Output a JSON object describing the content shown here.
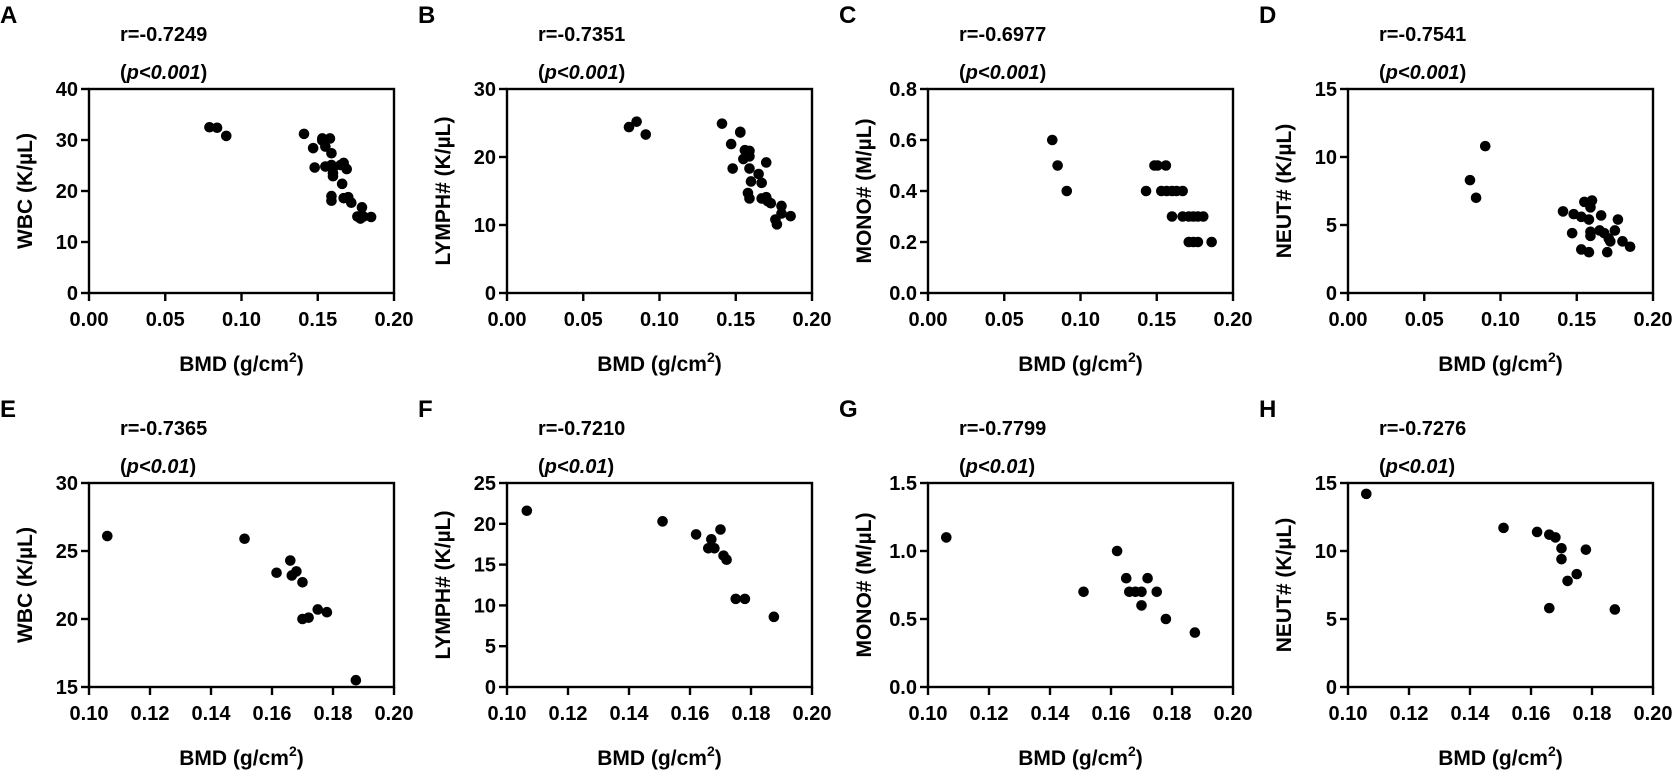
{
  "chart_data": [
    {
      "panel": "A",
      "type": "scatter",
      "r_label": "r=-0.7249",
      "p_prefix": "(",
      "p_italic": "p",
      "p_value": "<0.001",
      "p_suffix": ")",
      "xlabel": "BMD (g/cm",
      "xlabel_sup": "2",
      "xlabel_end": ")",
      "ylabel": "WBC (K/µL)",
      "xlim": [
        0,
        0.2
      ],
      "xticks": [
        "0.00",
        "0.05",
        "0.10",
        "0.15",
        "0.20"
      ],
      "ylim": [
        0,
        40
      ],
      "yticks": [
        "0",
        "10",
        "20",
        "30",
        "40"
      ],
      "points": [
        [
          0.079,
          32.5
        ],
        [
          0.084,
          32.4
        ],
        [
          0.09,
          30.8
        ],
        [
          0.141,
          31.2
        ],
        [
          0.147,
          28.4
        ],
        [
          0.148,
          24.6
        ],
        [
          0.153,
          30.3
        ],
        [
          0.153,
          29.9
        ],
        [
          0.155,
          28.7
        ],
        [
          0.158,
          30.3
        ],
        [
          0.159,
          27.4
        ],
        [
          0.155,
          24.8
        ],
        [
          0.159,
          25.1
        ],
        [
          0.16,
          23.5
        ],
        [
          0.16,
          22.9
        ],
        [
          0.16,
          24.5
        ],
        [
          0.165,
          25.1
        ],
        [
          0.167,
          25.5
        ],
        [
          0.169,
          24.3
        ],
        [
          0.166,
          21.4
        ],
        [
          0.159,
          19.0
        ],
        [
          0.159,
          18.1
        ],
        [
          0.167,
          18.6
        ],
        [
          0.17,
          18.8
        ],
        [
          0.172,
          17.7
        ],
        [
          0.179,
          16.8
        ],
        [
          0.176,
          15.0
        ],
        [
          0.178,
          14.6
        ],
        [
          0.18,
          15.0
        ],
        [
          0.185,
          14.9
        ]
      ]
    },
    {
      "panel": "B",
      "type": "scatter",
      "r_label": "r=-0.7351",
      "p_prefix": "(",
      "p_italic": "p",
      "p_value": "<0.001",
      "p_suffix": ")",
      "xlabel": "BMD (g/cm",
      "xlabel_sup": "2",
      "xlabel_end": ")",
      "ylabel": "LYMPH# (K/µL)",
      "xlim": [
        0,
        0.2
      ],
      "xticks": [
        "0.00",
        "0.05",
        "0.10",
        "0.15",
        "0.20"
      ],
      "ylim": [
        0,
        30
      ],
      "yticks": [
        "0",
        "10",
        "20",
        "30"
      ],
      "points": [
        [
          0.08,
          24.4
        ],
        [
          0.085,
          25.2
        ],
        [
          0.091,
          23.3
        ],
        [
          0.141,
          24.9
        ],
        [
          0.153,
          23.7
        ],
        [
          0.153,
          23.6
        ],
        [
          0.147,
          21.9
        ],
        [
          0.148,
          18.3
        ],
        [
          0.156,
          21.0
        ],
        [
          0.159,
          20.9
        ],
        [
          0.155,
          19.7
        ],
        [
          0.159,
          20.1
        ],
        [
          0.159,
          18.3
        ],
        [
          0.17,
          19.2
        ],
        [
          0.165,
          17.5
        ],
        [
          0.16,
          16.4
        ],
        [
          0.167,
          16.2
        ],
        [
          0.158,
          14.7
        ],
        [
          0.159,
          13.9
        ],
        [
          0.167,
          13.9
        ],
        [
          0.17,
          14.1
        ],
        [
          0.171,
          13.5
        ],
        [
          0.173,
          13.2
        ],
        [
          0.18,
          12.8
        ],
        [
          0.18,
          11.7
        ],
        [
          0.186,
          11.3
        ],
        [
          0.176,
          10.8
        ],
        [
          0.177,
          10.1
        ]
      ]
    },
    {
      "panel": "C",
      "type": "scatter",
      "r_label": "r=-0.6977",
      "p_prefix": "(",
      "p_italic": "p",
      "p_value": "<0.001",
      "p_suffix": ")",
      "xlabel": "BMD (g/cm",
      "xlabel_sup": "2",
      "xlabel_end": ")",
      "ylabel": "MONO# (M/µL)",
      "xlim": [
        0,
        0.2
      ],
      "xticks": [
        "0.00",
        "0.05",
        "0.10",
        "0.15",
        "0.20"
      ],
      "ylim": [
        0,
        0.8
      ],
      "yticks": [
        "0.0",
        "0.2",
        "0.4",
        "0.6",
        "0.8"
      ],
      "points": [
        [
          0.0815,
          0.6
        ],
        [
          0.085,
          0.5
        ],
        [
          0.091,
          0.4
        ],
        [
          0.143,
          0.4
        ],
        [
          0.1485,
          0.5
        ],
        [
          0.1505,
          0.5
        ],
        [
          0.156,
          0.5
        ],
        [
          0.153,
          0.4
        ],
        [
          0.1565,
          0.4
        ],
        [
          0.16,
          0.4
        ],
        [
          0.163,
          0.4
        ],
        [
          0.167,
          0.4
        ],
        [
          0.16,
          0.3
        ],
        [
          0.167,
          0.3
        ],
        [
          0.171,
          0.3
        ],
        [
          0.174,
          0.3
        ],
        [
          0.177,
          0.3
        ],
        [
          0.1805,
          0.3
        ],
        [
          0.171,
          0.2
        ],
        [
          0.174,
          0.2
        ],
        [
          0.177,
          0.2
        ],
        [
          0.186,
          0.2
        ]
      ]
    },
    {
      "panel": "D",
      "type": "scatter",
      "r_label": "r=-0.7541",
      "p_prefix": "(",
      "p_italic": "p",
      "p_value": "<0.001",
      "p_suffix": ")",
      "xlabel": "BMD (g/cm",
      "xlabel_sup": "2",
      "xlabel_end": ")",
      "ylabel": "NEUT# (K/µL)",
      "xlim": [
        0,
        0.2
      ],
      "xticks": [
        "0.00",
        "0.05",
        "0.10",
        "0.15",
        "0.20"
      ],
      "ylim": [
        0,
        15
      ],
      "yticks": [
        "0",
        "5",
        "10",
        "15"
      ],
      "points": [
        [
          0.08,
          8.3
        ],
        [
          0.084,
          7.0
        ],
        [
          0.09,
          10.8
        ],
        [
          0.141,
          6.0
        ],
        [
          0.148,
          5.8
        ],
        [
          0.153,
          5.6
        ],
        [
          0.147,
          4.4
        ],
        [
          0.153,
          3.2
        ],
        [
          0.158,
          3.0
        ],
        [
          0.155,
          6.7
        ],
        [
          0.16,
          6.8
        ],
        [
          0.159,
          6.3
        ],
        [
          0.158,
          5.4
        ],
        [
          0.166,
          5.7
        ],
        [
          0.159,
          4.5
        ],
        [
          0.159,
          4.2
        ],
        [
          0.165,
          4.6
        ],
        [
          0.168,
          4.4
        ],
        [
          0.171,
          4.0
        ],
        [
          0.172,
          3.8
        ],
        [
          0.175,
          4.6
        ],
        [
          0.177,
          5.4
        ],
        [
          0.18,
          3.8
        ],
        [
          0.185,
          3.4
        ],
        [
          0.17,
          3.0
        ]
      ]
    },
    {
      "panel": "E",
      "type": "scatter",
      "r_label": "r=-0.7365",
      "p_prefix": "(",
      "p_italic": "p",
      "p_value": "<0.01",
      "p_suffix": ")",
      "xlabel": "BMD (g/cm",
      "xlabel_sup": "2",
      "xlabel_end": ")",
      "ylabel": "WBC (K/µL)",
      "xlim": [
        0.1,
        0.2
      ],
      "xticks": [
        "0.10",
        "0.12",
        "0.14",
        "0.16",
        "0.18",
        "0.20"
      ],
      "ylim": [
        15,
        30
      ],
      "yticks": [
        "15",
        "20",
        "25",
        "30"
      ],
      "points": [
        [
          0.106,
          26.1
        ],
        [
          0.151,
          25.9
        ],
        [
          0.1615,
          23.4
        ],
        [
          0.166,
          24.3
        ],
        [
          0.1665,
          23.2
        ],
        [
          0.168,
          23.5
        ],
        [
          0.17,
          22.7
        ],
        [
          0.17,
          20.0
        ],
        [
          0.172,
          20.1
        ],
        [
          0.175,
          20.7
        ],
        [
          0.178,
          20.5
        ],
        [
          0.1875,
          15.5
        ]
      ]
    },
    {
      "panel": "F",
      "type": "scatter",
      "r_label": "r=-0.7210",
      "p_prefix": "(",
      "p_italic": "p",
      "p_value": "<0.01",
      "p_suffix": ")",
      "xlabel": "BMD (g/cm",
      "xlabel_sup": "2",
      "xlabel_end": ")",
      "ylabel": "LYMPH# (K/µL)",
      "xlim": [
        0.1,
        0.2
      ],
      "xticks": [
        "0.10",
        "0.12",
        "0.14",
        "0.16",
        "0.18",
        "0.20"
      ],
      "ylim": [
        0,
        25
      ],
      "yticks": [
        "0",
        "5",
        "10",
        "15",
        "20",
        "25"
      ],
      "points": [
        [
          0.1065,
          21.6
        ],
        [
          0.151,
          20.3
        ],
        [
          0.162,
          18.7
        ],
        [
          0.167,
          18.1
        ],
        [
          0.166,
          17.0
        ],
        [
          0.168,
          17.0
        ],
        [
          0.17,
          19.3
        ],
        [
          0.171,
          16.1
        ],
        [
          0.172,
          15.6
        ],
        [
          0.175,
          10.8
        ],
        [
          0.178,
          10.8
        ],
        [
          0.1875,
          8.6
        ]
      ]
    },
    {
      "panel": "G",
      "type": "scatter",
      "r_label": "r=-0.7799",
      "p_prefix": "(",
      "p_italic": "p",
      "p_value": "<0.01",
      "p_suffix": ")",
      "xlabel": "BMD (g/cm",
      "xlabel_sup": "2",
      "xlabel_end": ")",
      "ylabel": "MONO# (M/µL)",
      "xlim": [
        0.1,
        0.2
      ],
      "xticks": [
        "0.10",
        "0.12",
        "0.14",
        "0.16",
        "0.18",
        "0.20"
      ],
      "ylim": [
        0,
        1.5
      ],
      "yticks": [
        "0.0",
        "0.5",
        "1.0",
        "1.5"
      ],
      "points": [
        [
          0.106,
          1.1
        ],
        [
          0.151,
          0.7
        ],
        [
          0.162,
          1.0
        ],
        [
          0.165,
          0.8
        ],
        [
          0.166,
          0.7
        ],
        [
          0.168,
          0.7
        ],
        [
          0.17,
          0.6
        ],
        [
          0.17,
          0.7
        ],
        [
          0.172,
          0.8
        ],
        [
          0.175,
          0.7
        ],
        [
          0.178,
          0.5
        ],
        [
          0.1875,
          0.4
        ]
      ]
    },
    {
      "panel": "H",
      "type": "scatter",
      "r_label": "r=-0.7276",
      "p_prefix": "(",
      "p_italic": "p",
      "p_value": "<0.01",
      "p_suffix": ")",
      "xlabel": "BMD (g/cm",
      "xlabel_sup": "2",
      "xlabel_end": ")",
      "ylabel": "NEUT# (K/µL)",
      "xlim": [
        0.1,
        0.2
      ],
      "xticks": [
        "0.10",
        "0.12",
        "0.14",
        "0.16",
        "0.18",
        "0.20"
      ],
      "ylim": [
        0,
        15
      ],
      "yticks": [
        "0",
        "5",
        "10",
        "15"
      ],
      "points": [
        [
          0.106,
          14.2
        ],
        [
          0.151,
          11.7
        ],
        [
          0.162,
          11.4
        ],
        [
          0.166,
          11.2
        ],
        [
          0.168,
          11.0
        ],
        [
          0.17,
          10.2
        ],
        [
          0.17,
          9.4
        ],
        [
          0.172,
          7.8
        ],
        [
          0.175,
          8.3
        ],
        [
          0.178,
          10.1
        ],
        [
          0.166,
          5.8
        ],
        [
          0.1875,
          5.7
        ]
      ]
    }
  ]
}
